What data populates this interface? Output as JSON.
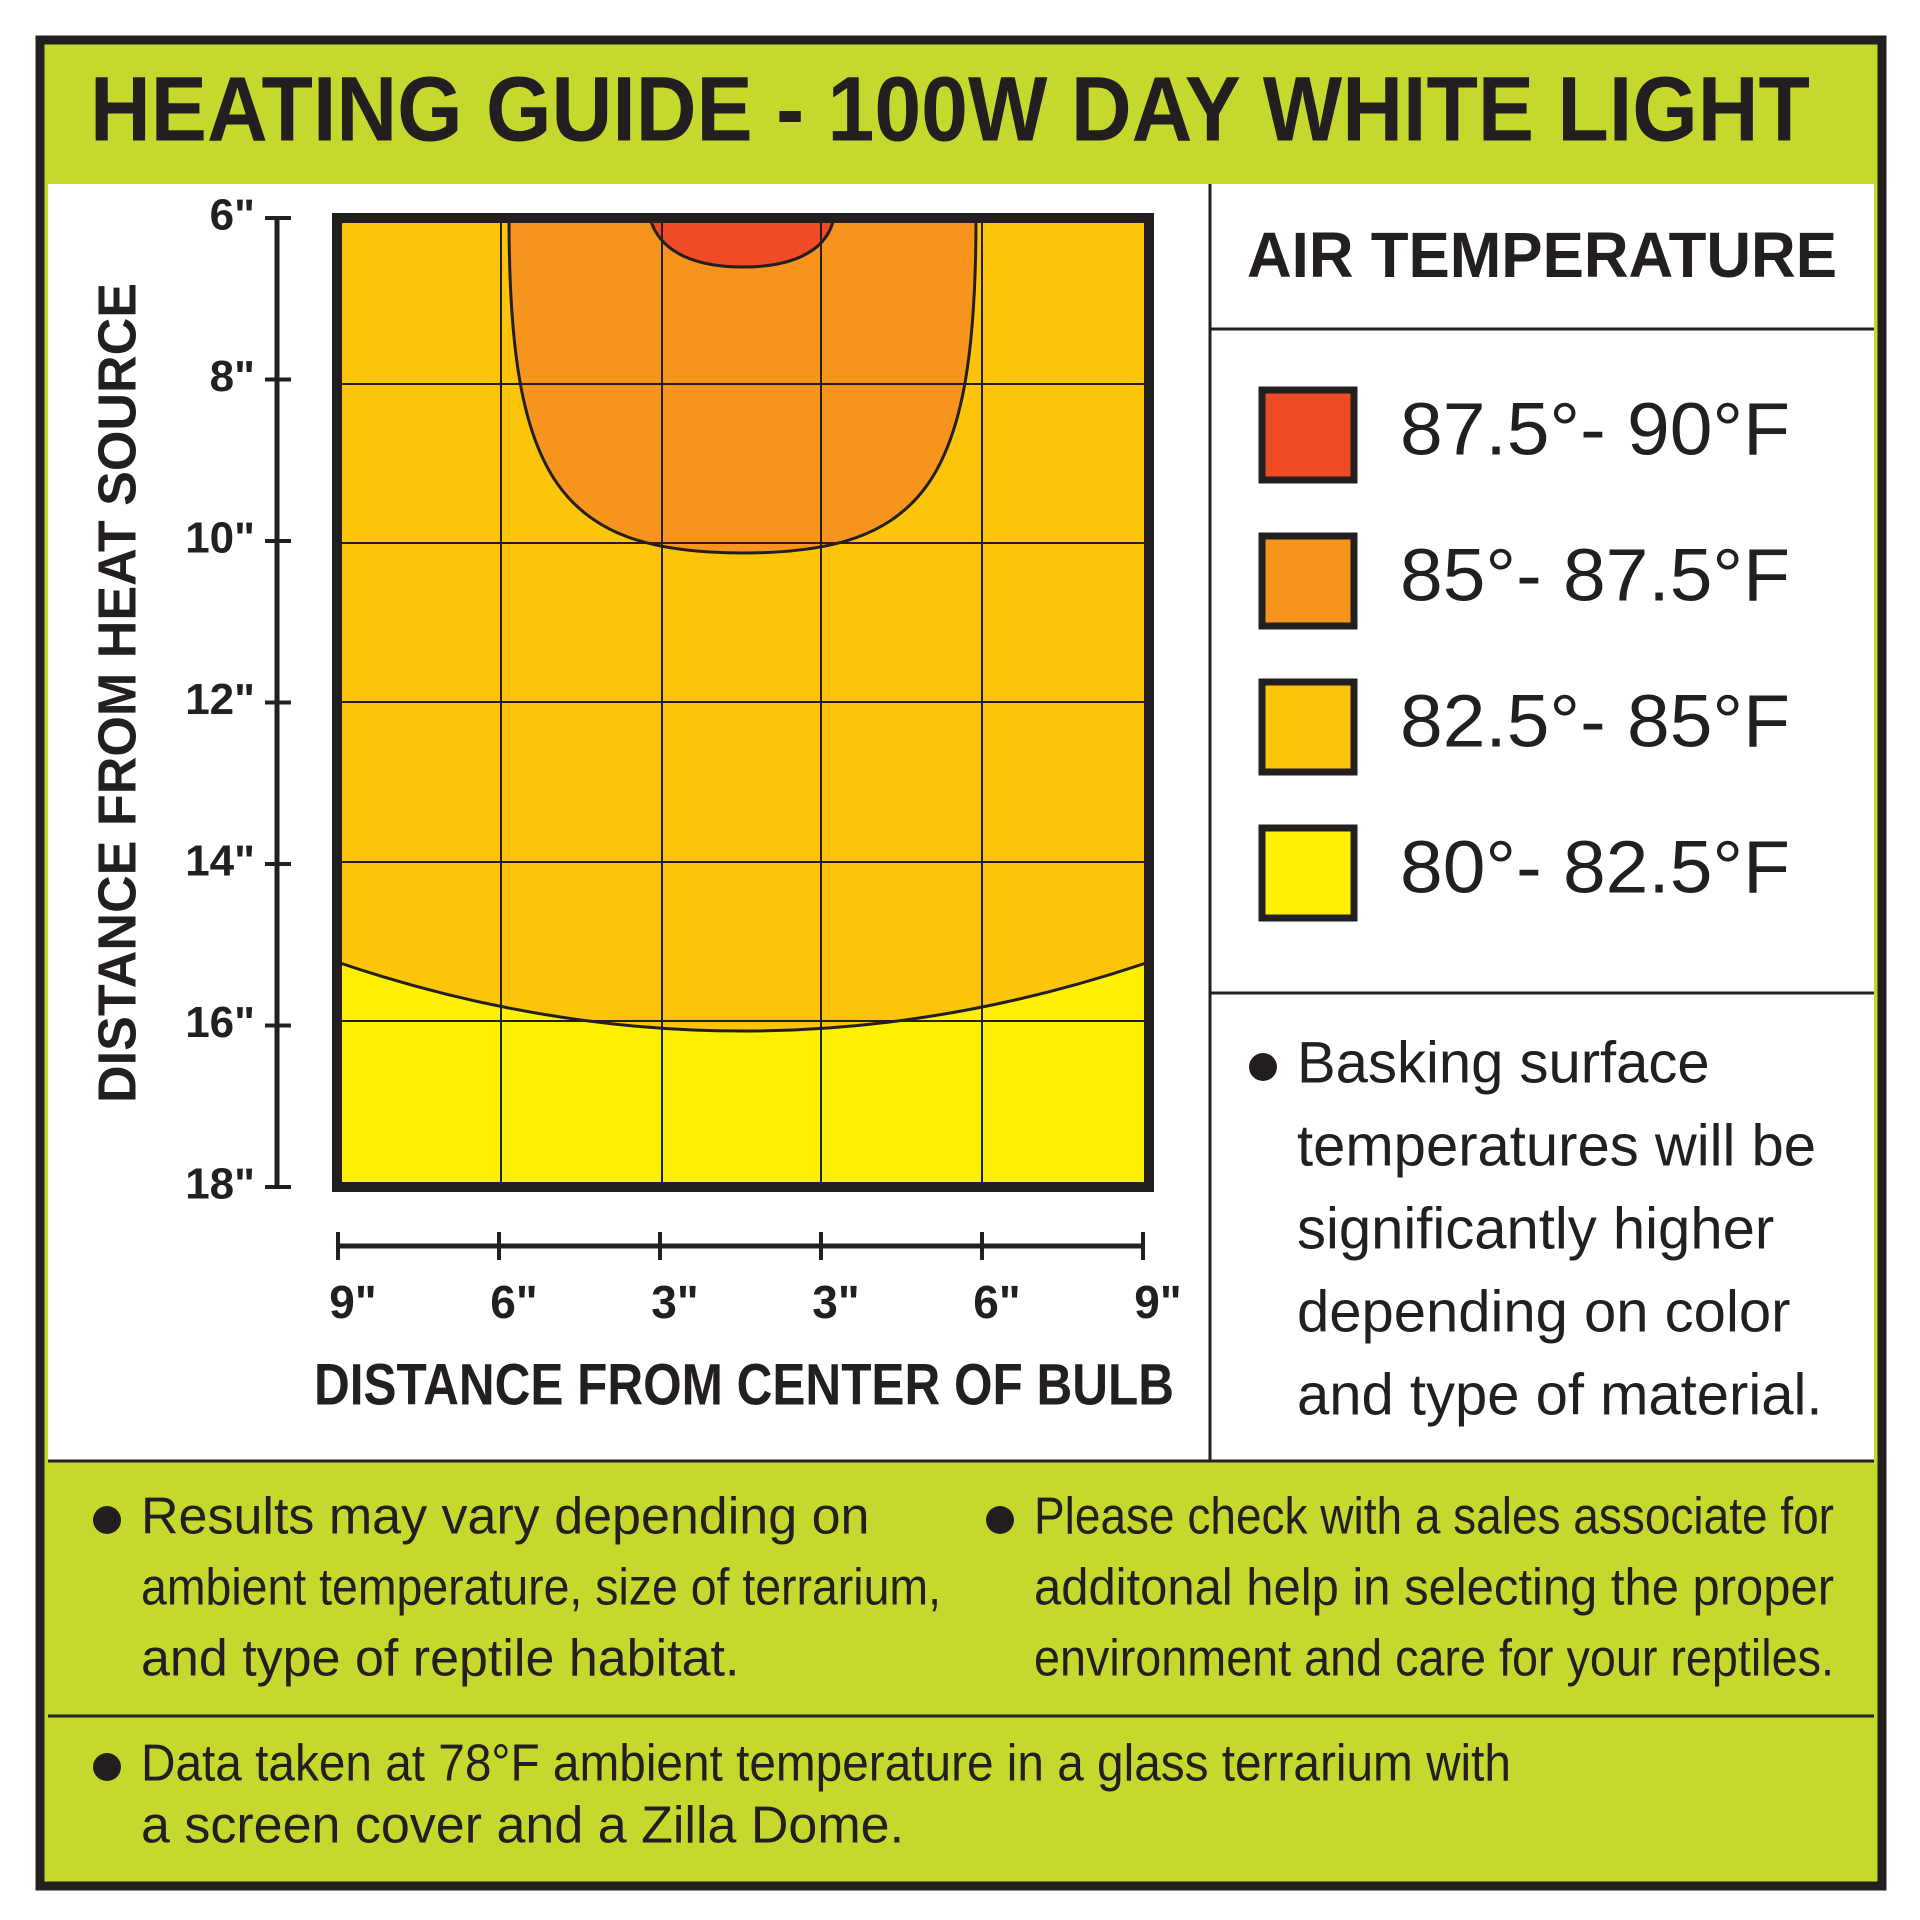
{
  "title": "HEATING GUIDE - 100W DAY WHITE LIGHT",
  "chart": {
    "y_axis_title": "DISTANCE FROM HEAT SOURCE",
    "y_ticks": [
      "6\"",
      "8\"",
      "10\"",
      "12\"",
      "14\"",
      "16\"",
      "18\""
    ],
    "x_axis_title": "DISTANCE FROM CENTER OF BULB",
    "x_ticks": [
      "9\"",
      "6\"",
      "3\"",
      "3\"",
      "6\"",
      "9\""
    ]
  },
  "legend": {
    "title": "AIR TEMPERATURE",
    "items": [
      {
        "label": "87.5°- 90°F",
        "color": "#ef4b24"
      },
      {
        "label": "85°- 87.5°F",
        "color": "#f7941d"
      },
      {
        "label": "82.5°- 85°F",
        "color": "#fdc50a"
      },
      {
        "label": "80°- 82.5°F",
        "color": "#fdf002"
      }
    ]
  },
  "notes": {
    "basking": [
      "Basking surface",
      "temperatures will be",
      "significantly higher",
      "depending on color",
      "and type of material."
    ],
    "results": [
      "Results may vary depending on",
      "ambient temperature, size of terrarium,",
      "and type of reptile habitat."
    ],
    "sales": [
      "Please check with a sales associate for",
      "additonal help in selecting the proper",
      "environment and care for your reptiles."
    ],
    "data": [
      "Data taken at 78°F ambient temperature in a glass terrarium with",
      "a screen cover and a Zilla Dome."
    ]
  }
}
